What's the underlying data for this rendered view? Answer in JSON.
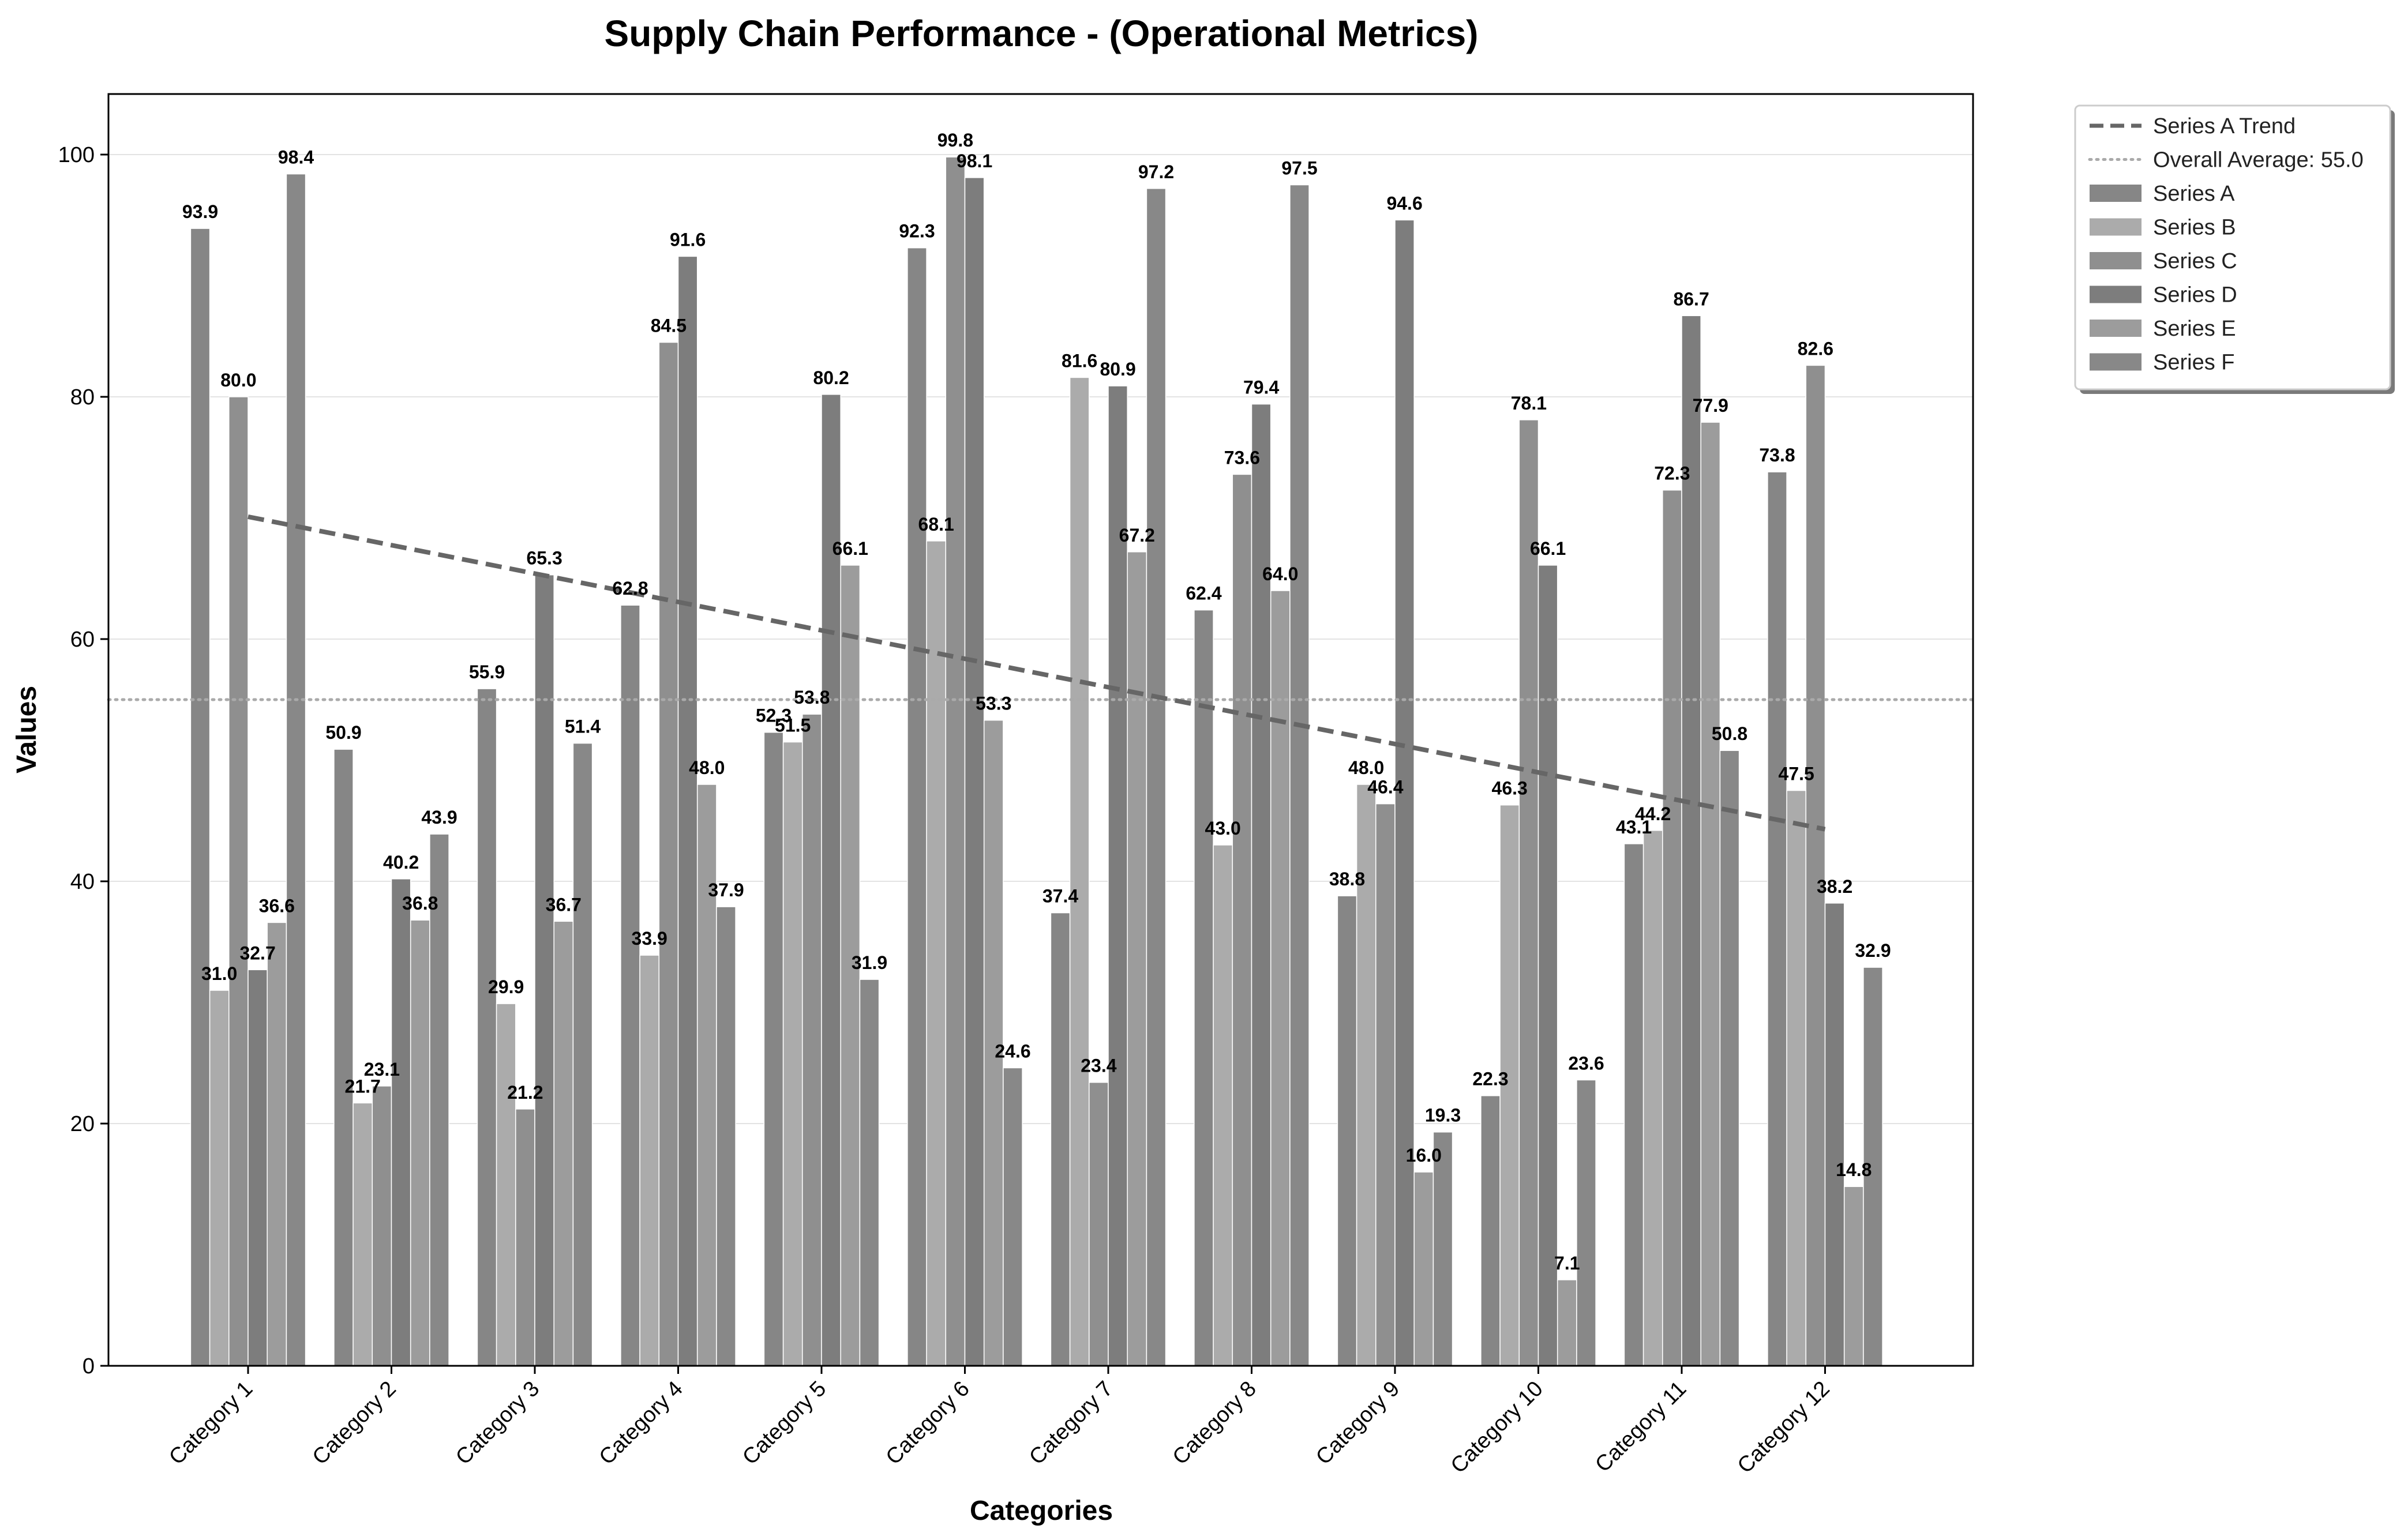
{
  "chart_data": {
    "type": "bar",
    "title": "Supply Chain Performance - (Operational Metrics)",
    "xlabel": "Categories",
    "ylabel": "Values",
    "ylim": [
      0,
      105
    ],
    "yticks": [
      0,
      20,
      40,
      60,
      80,
      100
    ],
    "grid": "horizontal",
    "legend_position": "outside-top-right",
    "categories": [
      "Category 1",
      "Category 2",
      "Category 3",
      "Category 4",
      "Category 5",
      "Category 6",
      "Category 7",
      "Category 8",
      "Category 9",
      "Category 10",
      "Category 11",
      "Category 12"
    ],
    "series": [
      {
        "name": "Series A",
        "color": "#868686",
        "values": [
          93.9,
          50.9,
          55.9,
          62.8,
          52.3,
          92.3,
          37.4,
          62.4,
          38.8,
          22.3,
          43.1,
          73.8
        ]
      },
      {
        "name": "Series B",
        "color": "#ababab",
        "values": [
          31.0,
          21.7,
          29.9,
          33.9,
          51.5,
          68.1,
          81.6,
          43.0,
          48.0,
          46.3,
          44.2,
          47.5
        ]
      },
      {
        "name": "Series C",
        "color": "#8f8f8f",
        "values": [
          80.0,
          23.1,
          21.2,
          84.5,
          53.8,
          99.8,
          23.4,
          73.6,
          46.4,
          78.1,
          72.3,
          82.6
        ]
      },
      {
        "name": "Series D",
        "color": "#7d7d7d",
        "values": [
          32.7,
          40.2,
          65.3,
          91.6,
          80.2,
          98.1,
          80.9,
          79.4,
          94.6,
          66.1,
          86.7,
          38.2
        ]
      },
      {
        "name": "Series E",
        "color": "#9c9c9c",
        "values": [
          36.6,
          36.8,
          36.7,
          48.0,
          66.1,
          53.3,
          67.2,
          64.0,
          16.0,
          7.1,
          77.9,
          14.8
        ]
      },
      {
        "name": "Series F",
        "color": "#888888",
        "values": [
          98.4,
          43.9,
          51.4,
          37.9,
          31.9,
          24.6,
          97.2,
          97.5,
          19.3,
          23.6,
          50.8,
          32.9
        ]
      }
    ],
    "trend_line": {
      "name": "Series A Trend",
      "color": "#666666",
      "start": 70.1,
      "end": 44.3
    },
    "average_line": {
      "name": "Overall Average: 55.0",
      "color": "#aaaaaa",
      "value": 55.0
    }
  }
}
